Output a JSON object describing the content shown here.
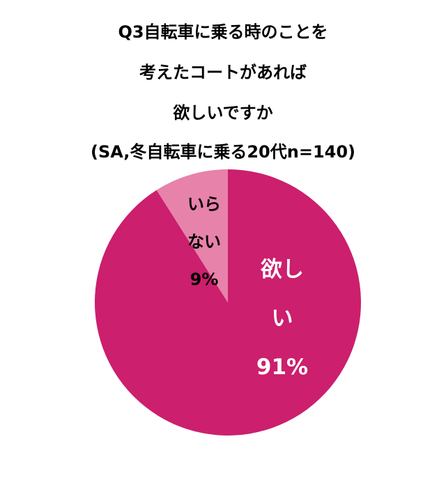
{
  "chart_data": {
    "type": "pie",
    "title": [
      "Q3自転車に乗る時のことを",
      "考えたコートがあれば",
      "欲しいですか"
    ],
    "subtitle": "(SA,冬自転車に乗る20代n=140)",
    "categories": [
      "欲しい",
      "いらない"
    ],
    "values": [
      91,
      9
    ],
    "value_labels": [
      "91%",
      "9%"
    ],
    "colors": [
      "#cc1f6e",
      "#e782aa"
    ],
    "label_colors": [
      "#ffffff",
      "#000000"
    ]
  }
}
